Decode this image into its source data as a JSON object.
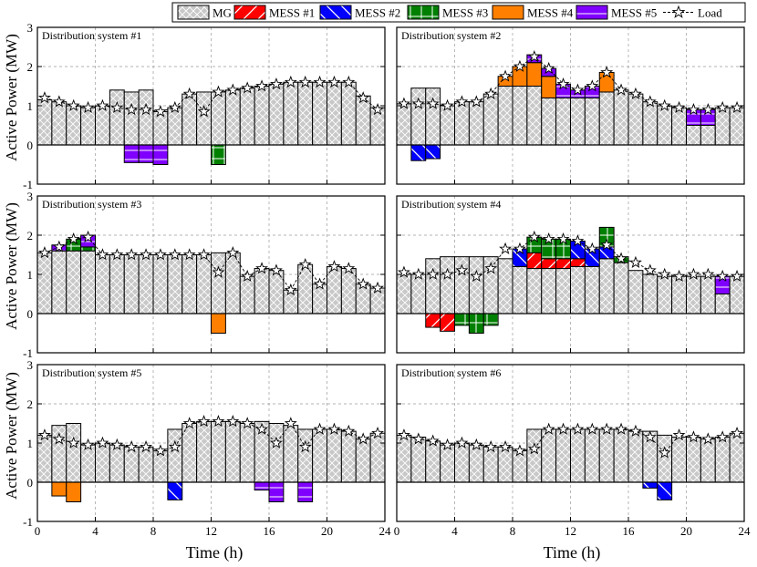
{
  "legend": {
    "items": [
      {
        "name": "MG",
        "color": "#c8c8c8",
        "pattern": "crosshatch"
      },
      {
        "name": "MESS #1",
        "color": "#ff0000",
        "pattern": "diag"
      },
      {
        "name": "MESS #2",
        "color": "#0000ff",
        "pattern": "diag"
      },
      {
        "name": "MESS #3",
        "color": "#008000",
        "pattern": "plus"
      },
      {
        "name": "MESS #4",
        "color": "#ff8000",
        "pattern": "none"
      },
      {
        "name": "MESS #5",
        "color": "#8000ff",
        "pattern": "hline"
      },
      {
        "name": "Load",
        "color": "#000000",
        "pattern": "star-dashed"
      }
    ]
  },
  "axes": {
    "ylabel": "Active Power (MW)",
    "xlabel": "Time (h)",
    "xticks": [
      "0",
      "4",
      "8",
      "12",
      "16",
      "20",
      "24"
    ],
    "yticks": [
      "-1",
      "0",
      "1",
      "2",
      "3"
    ],
    "xlim": [
      0,
      24
    ],
    "ylim": [
      -1,
      3
    ],
    "grid": true
  },
  "chart_data": [
    {
      "type": "bar",
      "title": "Distribution system #1",
      "x": [
        1,
        2,
        3,
        4,
        5,
        6,
        7,
        8,
        9,
        10,
        11,
        12,
        13,
        14,
        15,
        16,
        17,
        18,
        19,
        20,
        21,
        22,
        23,
        24
      ],
      "mg": [
        1.15,
        1.1,
        1.0,
        0.95,
        1.0,
        1.4,
        1.35,
        1.4,
        0.85,
        0.95,
        1.3,
        1.35,
        1.35,
        1.4,
        1.45,
        1.5,
        1.55,
        1.6,
        1.6,
        1.6,
        1.6,
        1.6,
        1.25,
        0.95
      ],
      "mess": {
        "MESS #1": [
          0,
          0,
          0,
          0,
          0,
          0,
          0,
          0,
          0,
          0,
          0,
          0,
          0,
          0,
          0,
          0,
          0,
          0,
          0,
          0,
          0,
          0,
          0,
          0
        ],
        "MESS #2": [
          0,
          0,
          0,
          0,
          0,
          0,
          0,
          0,
          0,
          0,
          0,
          0,
          0,
          0,
          0,
          0,
          0,
          0,
          0,
          0,
          0,
          0,
          0,
          0
        ],
        "MESS #3": [
          0,
          0,
          0,
          0,
          0,
          0,
          0,
          0,
          0,
          0,
          0,
          0,
          -0.5,
          0,
          0,
          0,
          0,
          0,
          0,
          0,
          0,
          0,
          0,
          0
        ],
        "MESS #4": [
          0,
          0,
          0,
          0,
          0,
          0,
          0,
          0,
          0,
          0,
          0,
          0,
          0,
          0,
          0,
          0,
          0,
          0,
          0,
          0,
          0,
          0,
          0,
          0
        ],
        "MESS #5": [
          0,
          0,
          0,
          0,
          0,
          0,
          -0.45,
          -0.45,
          -0.5,
          0,
          0,
          0,
          0,
          0,
          0,
          0,
          0,
          0,
          0,
          0,
          0,
          0,
          0,
          0
        ]
      },
      "load": [
        1.2,
        1.1,
        1.0,
        0.95,
        1.0,
        0.95,
        0.9,
        0.9,
        0.85,
        0.95,
        1.3,
        0.85,
        1.35,
        1.4,
        1.45,
        1.5,
        1.55,
        1.6,
        1.6,
        1.6,
        1.6,
        1.6,
        1.2,
        0.9
      ]
    },
    {
      "type": "bar",
      "title": "Distribution system #2",
      "x": [
        1,
        2,
        3,
        4,
        5,
        6,
        7,
        8,
        9,
        10,
        11,
        12,
        13,
        14,
        15,
        16,
        17,
        18,
        19,
        20,
        21,
        22,
        23,
        24
      ],
      "mg": [
        1.05,
        1.45,
        1.45,
        1.0,
        1.1,
        1.1,
        1.3,
        1.5,
        1.5,
        1.5,
        1.2,
        1.2,
        1.2,
        1.2,
        1.35,
        1.4,
        1.3,
        1.1,
        1.0,
        0.95,
        0.5,
        0.5,
        0.95,
        0.95
      ],
      "mess": {
        "MESS #1": [
          0,
          0,
          0,
          0,
          0,
          0,
          0,
          0,
          0,
          0,
          0,
          0,
          0,
          0,
          0,
          0,
          0,
          0,
          0,
          0,
          0,
          0,
          0,
          0
        ],
        "MESS #2": [
          0,
          -0.4,
          -0.35,
          0,
          0,
          0,
          0,
          0,
          0,
          0,
          0,
          0,
          0,
          0,
          0,
          0,
          0,
          0,
          0,
          0,
          0,
          0,
          0,
          0
        ],
        "MESS #3": [
          0,
          0,
          0,
          0,
          0,
          0,
          0,
          0,
          0,
          0,
          0,
          0,
          0,
          0,
          0,
          0,
          0,
          0,
          0,
          0,
          0,
          0,
          0,
          0
        ],
        "MESS #4": [
          0,
          0,
          0,
          0,
          0,
          0,
          0,
          0.25,
          0.5,
          0.6,
          0.55,
          0,
          0,
          0,
          0.5,
          0,
          0,
          0,
          0,
          0,
          0,
          0,
          0,
          0
        ],
        "MESS #5": [
          0,
          0,
          0,
          0,
          0,
          0,
          0,
          0,
          0,
          0.2,
          0.2,
          0.35,
          0.2,
          0.3,
          0,
          0,
          0,
          0,
          0,
          0,
          0.4,
          0.4,
          0,
          0
        ]
      },
      "load": [
        1.05,
        1.05,
        1.05,
        1.0,
        1.1,
        1.1,
        1.3,
        1.75,
        2.0,
        2.25,
        1.95,
        1.55,
        1.4,
        1.5,
        1.85,
        1.4,
        1.3,
        1.1,
        1.0,
        0.95,
        0.9,
        0.9,
        0.95,
        0.95
      ]
    },
    {
      "type": "bar",
      "title": "Distribution system #3",
      "x": [
        1,
        2,
        3,
        4,
        5,
        6,
        7,
        8,
        9,
        10,
        11,
        12,
        13,
        14,
        15,
        16,
        17,
        18,
        19,
        20,
        21,
        22,
        23,
        24
      ],
      "mg": [
        1.55,
        1.6,
        1.6,
        1.6,
        1.5,
        1.5,
        1.5,
        1.5,
        1.5,
        1.5,
        1.5,
        1.5,
        1.55,
        1.55,
        0.95,
        1.15,
        1.1,
        0.6,
        1.25,
        0.75,
        1.2,
        1.15,
        0.75,
        0.65
      ],
      "mess": {
        "MESS #1": [
          0,
          0,
          0,
          0,
          0,
          0,
          0,
          0,
          0,
          0,
          0,
          0,
          0,
          0,
          0,
          0,
          0,
          0,
          0,
          0,
          0,
          0,
          0,
          0
        ],
        "MESS #2": [
          0,
          0,
          0,
          0,
          0,
          0,
          0,
          0,
          0,
          0,
          0,
          0,
          0,
          0,
          0,
          0,
          0,
          0,
          0,
          0,
          0,
          0,
          0,
          0
        ],
        "MESS #3": [
          0,
          0,
          0.3,
          0.1,
          0,
          0,
          0,
          0,
          0,
          0,
          0,
          0,
          0,
          0,
          0,
          0,
          0,
          0,
          0,
          0,
          0,
          0,
          0,
          0
        ],
        "MESS #4": [
          0,
          0,
          0,
          0,
          0,
          0,
          0,
          0,
          0,
          0,
          0,
          0,
          -0.5,
          0,
          0,
          0,
          0,
          0,
          0,
          0,
          0,
          0,
          0,
          0
        ],
        "MESS #5": [
          0,
          0.15,
          0,
          0.3,
          0,
          0,
          0,
          0,
          0,
          0,
          0,
          0,
          0,
          0,
          0,
          0,
          0,
          0,
          0,
          0,
          0,
          0,
          0,
          0
        ]
      },
      "load": [
        1.55,
        1.7,
        1.9,
        1.95,
        1.5,
        1.5,
        1.5,
        1.5,
        1.5,
        1.5,
        1.5,
        1.5,
        1.05,
        1.55,
        0.95,
        1.15,
        1.1,
        0.6,
        1.25,
        0.75,
        1.2,
        1.15,
        0.75,
        0.65
      ]
    },
    {
      "type": "bar",
      "title": "Distribution system #4",
      "x": [
        1,
        2,
        3,
        4,
        5,
        6,
        7,
        8,
        9,
        10,
        11,
        12,
        13,
        14,
        15,
        16,
        17,
        18,
        19,
        20,
        21,
        22,
        23,
        24
      ],
      "mg": [
        1.0,
        1.0,
        1.4,
        1.45,
        1.45,
        1.45,
        1.45,
        1.4,
        1.2,
        1.15,
        1.15,
        1.15,
        1.2,
        1.2,
        1.4,
        1.3,
        1.1,
        1.0,
        0.95,
        0.95,
        0.95,
        0.95,
        0.5,
        0.95
      ],
      "mess": {
        "MESS #1": [
          0,
          0,
          -0.35,
          -0.45,
          0,
          0,
          0,
          0,
          0,
          0.4,
          0.25,
          0.25,
          0.2,
          0,
          0,
          0,
          0,
          0,
          0,
          0,
          0,
          0,
          0,
          0
        ],
        "MESS #2": [
          0,
          0,
          0,
          0,
          0,
          0,
          0,
          0,
          0.45,
          0,
          0,
          0,
          0.45,
          0.45,
          0.3,
          0,
          0,
          0,
          0,
          0,
          0,
          0,
          0,
          0
        ],
        "MESS #3": [
          0,
          0,
          0,
          0,
          -0.3,
          -0.5,
          -0.3,
          0,
          0,
          0.4,
          0.5,
          0.5,
          0,
          0,
          0.5,
          0.15,
          0,
          0,
          0,
          0,
          0,
          0,
          0,
          0
        ],
        "MESS #4": [
          0,
          0,
          0,
          0,
          0,
          0,
          0,
          0,
          0,
          0,
          0,
          0,
          0,
          0,
          0,
          0,
          0,
          0,
          0,
          0,
          0,
          0,
          0,
          0
        ],
        "MESS #5": [
          0,
          0,
          0,
          0,
          0,
          0,
          0,
          0,
          0,
          0,
          0,
          0,
          0,
          0,
          0,
          0,
          0,
          0,
          0,
          0,
          0,
          0,
          0.45,
          0
        ]
      },
      "load": [
        1.05,
        1.0,
        1.0,
        1.0,
        1.1,
        0.95,
        1.15,
        1.65,
        1.65,
        1.95,
        1.9,
        1.9,
        1.85,
        1.65,
        1.75,
        1.4,
        1.3,
        1.1,
        1.0,
        0.95,
        1.0,
        1.0,
        0.95,
        0.95
      ]
    },
    {
      "type": "bar",
      "title": "Distribution system #5",
      "x": [
        1,
        2,
        3,
        4,
        5,
        6,
        7,
        8,
        9,
        10,
        11,
        12,
        13,
        14,
        15,
        16,
        17,
        18,
        19,
        20,
        21,
        22,
        23,
        24
      ],
      "mg": [
        1.2,
        1.45,
        1.5,
        0.95,
        1.0,
        0.95,
        0.9,
        0.9,
        0.8,
        1.35,
        1.5,
        1.55,
        1.55,
        1.55,
        1.5,
        1.55,
        1.5,
        1.45,
        1.35,
        1.35,
        1.35,
        1.3,
        1.1,
        1.25
      ],
      "mess": {
        "MESS #1": [
          0,
          0,
          0,
          0,
          0,
          0,
          0,
          0,
          0,
          0,
          0,
          0,
          0,
          0,
          0,
          0,
          0,
          0,
          0,
          0,
          0,
          0,
          0,
          0
        ],
        "MESS #2": [
          0,
          0,
          0,
          0,
          0,
          0,
          0,
          0,
          0,
          -0.45,
          0,
          0,
          0,
          0,
          0,
          0,
          0,
          0,
          0,
          0,
          0,
          0,
          0,
          0
        ],
        "MESS #3": [
          0,
          0,
          0,
          0,
          0,
          0,
          0,
          0,
          0,
          0,
          0,
          0,
          0,
          0,
          0,
          0,
          0,
          0,
          0,
          0,
          0,
          0,
          0,
          0
        ],
        "MESS #4": [
          0,
          -0.35,
          -0.5,
          0,
          0,
          0,
          0,
          0,
          0,
          0,
          0,
          0,
          0,
          0,
          0,
          0,
          0,
          0,
          0,
          0,
          0,
          0,
          0,
          0
        ],
        "MESS #5": [
          0,
          0,
          0,
          0,
          0,
          0,
          0,
          0,
          0,
          0,
          0,
          0,
          0,
          0,
          0,
          -0.2,
          -0.5,
          0,
          -0.5,
          0,
          0,
          0,
          0,
          0
        ]
      },
      "load": [
        1.2,
        1.1,
        1.0,
        0.95,
        1.0,
        0.95,
        0.9,
        0.9,
        0.8,
        0.9,
        1.5,
        1.55,
        1.55,
        1.55,
        1.5,
        1.35,
        1.0,
        1.5,
        0.9,
        1.35,
        1.35,
        1.3,
        1.1,
        1.25
      ]
    },
    {
      "type": "bar",
      "title": "Distribution system #6",
      "x": [
        1,
        2,
        3,
        4,
        5,
        6,
        7,
        8,
        9,
        10,
        11,
        12,
        13,
        14,
        15,
        16,
        17,
        18,
        19,
        20,
        21,
        22,
        23,
        24
      ],
      "mg": [
        1.2,
        1.15,
        1.05,
        0.95,
        1.0,
        0.95,
        0.9,
        0.9,
        0.8,
        1.35,
        1.35,
        1.35,
        1.35,
        1.35,
        1.35,
        1.35,
        1.3,
        1.3,
        1.2,
        1.15,
        1.15,
        1.1,
        1.15,
        1.25
      ],
      "mess": {
        "MESS #1": [
          0,
          0,
          0,
          0,
          0,
          0,
          0,
          0,
          0,
          0,
          0,
          0,
          0,
          0,
          0,
          0,
          0,
          0,
          0,
          0,
          0,
          0,
          0,
          0
        ],
        "MESS #2": [
          0,
          0,
          0,
          0,
          0,
          0,
          0,
          0,
          0,
          0,
          0,
          0,
          0,
          0,
          0,
          0,
          0,
          -0.15,
          -0.45,
          0,
          0,
          0,
          0,
          0
        ],
        "MESS #3": [
          0,
          0,
          0,
          0,
          0,
          0,
          0,
          0,
          0,
          0,
          0,
          0,
          0,
          0,
          0,
          0,
          0,
          0,
          0,
          0,
          0,
          0,
          0,
          0
        ],
        "MESS #4": [
          0,
          0,
          0,
          0,
          0,
          0,
          0,
          0,
          0,
          0,
          0,
          0,
          0,
          0,
          0,
          0,
          0,
          0,
          0,
          0,
          0,
          0,
          0,
          0
        ],
        "MESS #5": [
          0,
          0,
          0,
          0,
          0,
          0,
          0,
          0,
          0,
          0,
          0,
          0,
          0,
          0,
          0,
          0,
          0,
          0,
          0,
          0,
          0,
          0,
          0,
          0
        ]
      },
      "load": [
        1.2,
        1.1,
        1.05,
        0.95,
        1.0,
        0.95,
        0.9,
        0.9,
        0.8,
        0.85,
        1.35,
        1.35,
        1.35,
        1.35,
        1.35,
        1.35,
        1.3,
        1.15,
        0.75,
        1.2,
        1.15,
        1.1,
        1.15,
        1.25
      ]
    }
  ]
}
